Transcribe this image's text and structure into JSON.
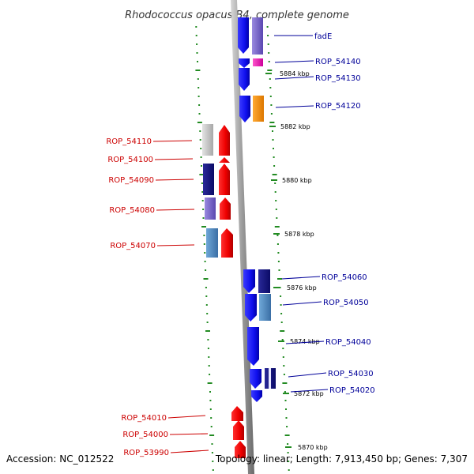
{
  "title": "Rhodococcus opacus B4, complete genome",
  "accession": "Accession: NC_012522",
  "topology": "Topology: linear; Length: 7,913,450 bp; Genes: 7,307",
  "colors": {
    "plus_strand_label": "#000099",
    "minus_strand_label": "#cc0000",
    "axis": "#999999",
    "dots": "#228b22"
  },
  "ticks": [
    {
      "label": "5884 kbp"
    },
    {
      "label": "5882 kbp"
    },
    {
      "label": "5880 kbp"
    },
    {
      "label": "5878 kbp"
    },
    {
      "label": "5876 kbp"
    },
    {
      "label": "5874 kbp"
    },
    {
      "label": "5872 kbp"
    },
    {
      "label": "5870 kbp"
    }
  ],
  "genes_plus": [
    {
      "name": "fadE"
    },
    {
      "name": "ROP_54140"
    },
    {
      "name": "ROP_54130"
    },
    {
      "name": "ROP_54120"
    },
    {
      "name": "ROP_54060"
    },
    {
      "name": "ROP_54050"
    },
    {
      "name": "ROP_54040"
    },
    {
      "name": "ROP_54030"
    },
    {
      "name": "ROP_54020"
    }
  ],
  "genes_minus": [
    {
      "name": "ROP_54110"
    },
    {
      "name": "ROP_54100"
    },
    {
      "name": "ROP_54090"
    },
    {
      "name": "ROP_54080"
    },
    {
      "name": "ROP_54070"
    },
    {
      "name": "ROP_54010"
    },
    {
      "name": "ROP_54000"
    },
    {
      "name": "ROP_53990"
    }
  ]
}
